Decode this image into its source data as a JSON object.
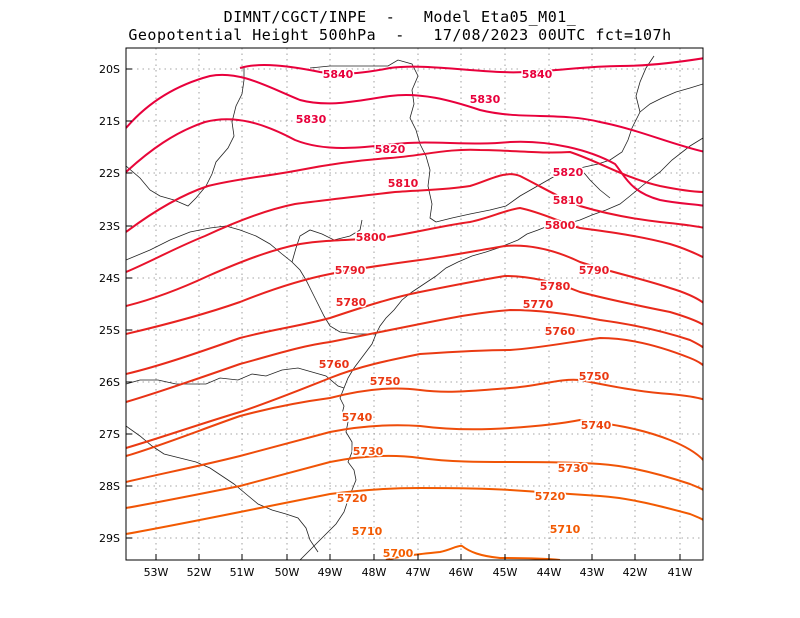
{
  "header": {
    "line1": "DIMNT/CGCT/INPE  -   Model Eta05_M01_",
    "line2": "Geopotential Height 500hPa  -   17/08/2023 00UTC fct=107h"
  },
  "axes": {
    "lat_labels": [
      "20S",
      "21S",
      "22S",
      "23S",
      "24S",
      "25S",
      "26S",
      "27S",
      "28S",
      "29S"
    ],
    "lon_labels": [
      "53W",
      "52W",
      "51W",
      "50W",
      "49W",
      "48W",
      "47W",
      "46W",
      "45W",
      "44W",
      "43W",
      "42W",
      "41W"
    ]
  },
  "contours": [
    {
      "value": 5840,
      "color": "#e8003c"
    },
    {
      "value": 5830,
      "color": "#e8003c"
    },
    {
      "value": 5820,
      "color": "#e8063a"
    },
    {
      "value": 5810,
      "color": "#e80c32"
    },
    {
      "value": 5800,
      "color": "#e8122c"
    },
    {
      "value": 5790,
      "color": "#e81a26"
    },
    {
      "value": 5780,
      "color": "#e82220"
    },
    {
      "value": 5770,
      "color": "#e82a1a"
    },
    {
      "value": 5760,
      "color": "#e83216"
    },
    {
      "value": 5750,
      "color": "#ea3a12"
    },
    {
      "value": 5740,
      "color": "#ec440e"
    },
    {
      "value": 5730,
      "color": "#ee4c0a"
    },
    {
      "value": 5720,
      "color": "#f05406"
    },
    {
      "value": 5710,
      "color": "#f25a02"
    },
    {
      "value": 5700,
      "color": "#f45e00"
    }
  ],
  "contour_labels": [
    {
      "text": "5840",
      "c": 0
    },
    {
      "text": "5840",
      "c": 0
    },
    {
      "text": "5830",
      "c": 1
    },
    {
      "text": "5830",
      "c": 1
    },
    {
      "text": "5820",
      "c": 2
    },
    {
      "text": "5820",
      "c": 2
    },
    {
      "text": "5810",
      "c": 3
    },
    {
      "text": "5810",
      "c": 3
    },
    {
      "text": "5800",
      "c": 4
    },
    {
      "text": "5800",
      "c": 4
    },
    {
      "text": "5790",
      "c": 5
    },
    {
      "text": "5790",
      "c": 5
    },
    {
      "text": "5780",
      "c": 6
    },
    {
      "text": "5780",
      "c": 6
    },
    {
      "text": "5770",
      "c": 7
    },
    {
      "text": "5760",
      "c": 8
    },
    {
      "text": "5760",
      "c": 8
    },
    {
      "text": "5750",
      "c": 9
    },
    {
      "text": "5750",
      "c": 9
    },
    {
      "text": "5740",
      "c": 10
    },
    {
      "text": "5740",
      "c": 10
    },
    {
      "text": "5730",
      "c": 11
    },
    {
      "text": "5730",
      "c": 11
    },
    {
      "text": "5720",
      "c": 12
    },
    {
      "text": "5720",
      "c": 12
    },
    {
      "text": "5710",
      "c": 13
    },
    {
      "text": "5710",
      "c": 13
    },
    {
      "text": "5700",
      "c": 14
    }
  ]
}
